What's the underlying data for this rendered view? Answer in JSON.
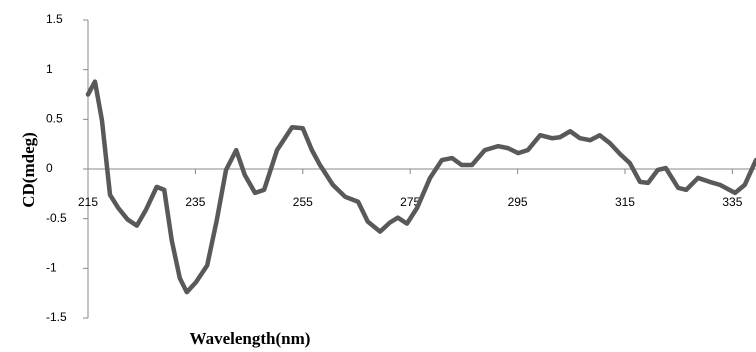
{
  "chart_data": {
    "type": "line",
    "xlabel": "Wavelength(nm)",
    "ylabel": "CD(mdeg)",
    "x": [
      215,
      216.3,
      217.6,
      219.1,
      220.6,
      222.4,
      224.1,
      225.8,
      227.8,
      229.2,
      230.6,
      232.1,
      233.4,
      235.1,
      237.2,
      239.0,
      240.7,
      242.6,
      244.2,
      246.1,
      247.8,
      250.2,
      253.0,
      255.0,
      256.7,
      258.2,
      260.6,
      262.9,
      265.3,
      267.1,
      269.4,
      271.2,
      272.7,
      274.4,
      276.3,
      278.7,
      280.9,
      282.8,
      284.6,
      286.5,
      288.9,
      291.4,
      293.2,
      295.1,
      296.9,
      299.2,
      301.4,
      302.9,
      304.8,
      306.6,
      308.5,
      310.3,
      312.2,
      314.1,
      315.9,
      317.8,
      319.3,
      321.1,
      322.6,
      324.9,
      326.4,
      328.6,
      330.8,
      332.7,
      335.5,
      337.3,
      339.4
    ],
    "series": [
      {
        "name": "CD",
        "color": "#595959",
        "values": [
          0.75,
          0.88,
          0.49,
          -0.26,
          -0.39,
          -0.51,
          -0.57,
          -0.41,
          -0.18,
          -0.21,
          -0.72,
          -1.1,
          -1.24,
          -1.14,
          -0.97,
          -0.51,
          -0.01,
          0.19,
          -0.06,
          -0.24,
          -0.21,
          0.19,
          0.42,
          0.41,
          0.19,
          0.04,
          -0.16,
          -0.28,
          -0.33,
          -0.53,
          -0.63,
          -0.54,
          -0.49,
          -0.55,
          -0.39,
          -0.09,
          0.09,
          0.11,
          0.04,
          0.04,
          0.19,
          0.23,
          0.21,
          0.16,
          0.19,
          0.34,
          0.31,
          0.32,
          0.38,
          0.31,
          0.29,
          0.34,
          0.26,
          0.15,
          0.06,
          -0.13,
          -0.14,
          -0.01,
          0.01,
          -0.19,
          -0.21,
          -0.09,
          -0.13,
          -0.16,
          -0.24,
          -0.16,
          0.09
        ]
      }
    ],
    "xlim": [
      215,
      339.4
    ],
    "xticks": [
      215,
      235,
      255,
      275,
      295,
      315,
      335
    ],
    "ylim": [
      -1.5,
      1.5
    ],
    "yticks": [
      -1.5,
      -1,
      -0.5,
      0,
      0.5,
      1,
      1.5
    ]
  }
}
